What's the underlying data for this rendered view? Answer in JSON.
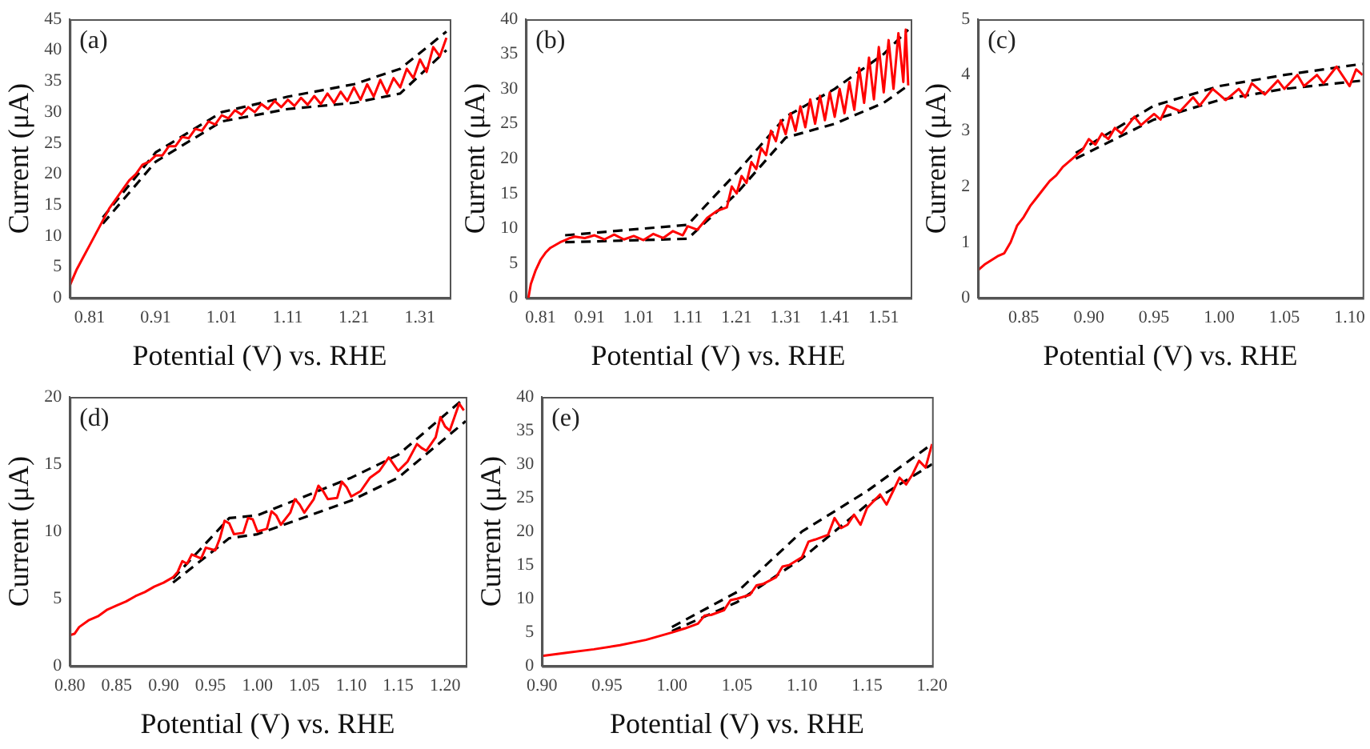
{
  "chart_data": [
    {
      "type": "line",
      "xlabel": "Potential (V) vs. RHE",
      "ylabel": "Current (μA)",
      "annotations": [
        "(a)"
      ],
      "legend": false,
      "grid": false,
      "marker": "none",
      "xlim": [
        0.78,
        1.355
      ],
      "xticks": [
        0.81,
        0.91,
        1.01,
        1.11,
        1.21,
        1.31
      ],
      "ylim": [
        0,
        45
      ],
      "yticks": [
        0,
        5,
        10,
        15,
        20,
        25,
        30,
        35,
        40,
        45
      ],
      "series": [
        {
          "color": "#ff0000",
          "line_style": "solid",
          "x": [
            0.78,
            0.79,
            0.8,
            0.81,
            0.82,
            0.83,
            0.84,
            0.85,
            0.86,
            0.87,
            0.88,
            0.89,
            0.9,
            0.91,
            0.92,
            0.93,
            0.94,
            0.95,
            0.96,
            0.97,
            0.98,
            0.99,
            1.0,
            1.01,
            1.02,
            1.03,
            1.04,
            1.05,
            1.06,
            1.07,
            1.08,
            1.09,
            1.1,
            1.11,
            1.12,
            1.13,
            1.14,
            1.15,
            1.16,
            1.17,
            1.18,
            1.19,
            1.2,
            1.21,
            1.22,
            1.23,
            1.24,
            1.25,
            1.26,
            1.27,
            1.28,
            1.29,
            1.3,
            1.31,
            1.32,
            1.33,
            1.34,
            1.35
          ],
          "values": [
            2,
            4.5,
            6.5,
            8.5,
            10.5,
            12.5,
            14.5,
            16,
            17.5,
            19,
            20,
            21.5,
            22,
            23,
            23,
            24.5,
            24.5,
            26,
            25.8,
            27.3,
            27,
            28.5,
            28,
            29.5,
            29,
            30.3,
            29.6,
            30.8,
            30,
            31.3,
            30.5,
            31.8,
            30.8,
            32,
            31,
            32.3,
            31.2,
            32.6,
            31.3,
            33,
            31.5,
            33.3,
            31.8,
            34,
            32,
            34.5,
            32.5,
            35.2,
            33,
            35.5,
            34,
            37,
            35.5,
            38.5,
            36.5,
            40.5,
            39,
            42
          ]
        },
        {
          "color": "#000000",
          "line_style": "dashed",
          "x": [
            0.83,
            0.91,
            1.01,
            1.11,
            1.21,
            1.28,
            1.35
          ],
          "values": [
            13,
            23.5,
            30,
            32.5,
            34.5,
            37,
            43
          ]
        },
        {
          "color": "#000000",
          "line_style": "dashed",
          "x": [
            0.83,
            0.91,
            1.01,
            1.11,
            1.21,
            1.28,
            1.35
          ],
          "values": [
            12,
            22,
            28.5,
            30.5,
            31.5,
            33,
            40
          ]
        }
      ]
    },
    {
      "type": "line",
      "xlabel": "Potential (V) vs. RHE",
      "ylabel": "Current (μA)",
      "annotations": [
        "(b)"
      ],
      "legend": false,
      "grid": false,
      "marker": "none",
      "xlim": [
        0.78,
        1.565
      ],
      "xticks": [
        0.81,
        0.91,
        1.01,
        1.11,
        1.21,
        1.31,
        1.41,
        1.51
      ],
      "ylim": [
        0,
        40
      ],
      "yticks": [
        0,
        5,
        10,
        15,
        20,
        25,
        30,
        35,
        40
      ],
      "series": [
        {
          "color": "#ff0000",
          "line_style": "solid",
          "x": [
            0.785,
            0.79,
            0.8,
            0.81,
            0.82,
            0.83,
            0.84,
            0.85,
            0.86,
            0.87,
            0.88,
            0.9,
            0.92,
            0.94,
            0.96,
            0.98,
            1.0,
            1.02,
            1.04,
            1.06,
            1.08,
            1.1,
            1.11,
            1.13,
            1.15,
            1.17,
            1.19,
            1.2,
            1.21,
            1.22,
            1.23,
            1.24,
            1.25,
            1.26,
            1.27,
            1.28,
            1.29,
            1.3,
            1.31,
            1.32,
            1.33,
            1.34,
            1.35,
            1.36,
            1.37,
            1.38,
            1.39,
            1.4,
            1.41,
            1.42,
            1.43,
            1.44,
            1.45,
            1.46,
            1.47,
            1.48,
            1.49,
            1.5,
            1.51,
            1.52,
            1.53,
            1.54,
            1.55,
            1.555,
            1.56
          ],
          "values": [
            0,
            2,
            4,
            5.5,
            6.5,
            7.2,
            7.6,
            8,
            8.3,
            8.6,
            8.8,
            8.6,
            9,
            8.4,
            9.1,
            8.4,
            8.9,
            8.3,
            9.2,
            8.6,
            9.6,
            9,
            10.3,
            9.8,
            11.5,
            12.5,
            13,
            16,
            15,
            17.5,
            16.5,
            19.5,
            18.5,
            21.5,
            20.5,
            24,
            22.5,
            25.5,
            23.5,
            26.5,
            24,
            27.5,
            24.5,
            28.5,
            25,
            29,
            25.5,
            29.5,
            26,
            30,
            26.5,
            31,
            27,
            33,
            28,
            34.5,
            28.5,
            36,
            29.5,
            37,
            30,
            38,
            31,
            38.5,
            30.5
          ]
        },
        {
          "color": "#000000",
          "line_style": "dashed",
          "x": [
            0.86,
            1.11,
            1.21,
            1.31,
            1.41,
            1.51,
            1.56
          ],
          "values": [
            9,
            10.5,
            18,
            26,
            30,
            35,
            38.5
          ]
        },
        {
          "color": "#000000",
          "line_style": "dashed",
          "x": [
            0.86,
            1.11,
            1.21,
            1.31,
            1.41,
            1.51,
            1.56
          ],
          "values": [
            8,
            8.5,
            15,
            23,
            25,
            28,
            30.5
          ]
        }
      ]
    },
    {
      "type": "line",
      "xlabel": "Potential (V) vs. RHE",
      "ylabel": "Current (μA)",
      "annotations": [
        "(c)"
      ],
      "legend": false,
      "grid": false,
      "marker": "none",
      "xlim": [
        0.815,
        1.11
      ],
      "xticks": [
        {
          "value": 0.85,
          "label": "0.85"
        },
        {
          "value": 0.9,
          "label": "0.90"
        },
        {
          "value": 0.95,
          "label": "0.95"
        },
        {
          "value": 1.0,
          "label": "1.00"
        },
        {
          "value": 1.05,
          "label": "1.05"
        },
        {
          "value": 1.1,
          "label": "1.10"
        }
      ],
      "ylim": [
        0,
        5
      ],
      "yticks": [
        0,
        1,
        2,
        3,
        4,
        5
      ],
      "series": [
        {
          "color": "#ff0000",
          "line_style": "solid",
          "x": [
            0.815,
            0.82,
            0.83,
            0.835,
            0.84,
            0.845,
            0.85,
            0.855,
            0.86,
            0.865,
            0.87,
            0.875,
            0.88,
            0.885,
            0.89,
            0.895,
            0.9,
            0.905,
            0.91,
            0.915,
            0.92,
            0.925,
            0.935,
            0.94,
            0.95,
            0.955,
            0.96,
            0.97,
            0.98,
            0.985,
            0.995,
            1.005,
            1.015,
            1.02,
            1.025,
            1.035,
            1.045,
            1.05,
            1.06,
            1.065,
            1.075,
            1.08,
            1.09,
            1.1,
            1.105,
            1.11
          ],
          "values": [
            0.5,
            0.6,
            0.75,
            0.8,
            1.0,
            1.3,
            1.45,
            1.65,
            1.8,
            1.95,
            2.1,
            2.2,
            2.35,
            2.45,
            2.55,
            2.65,
            2.85,
            2.75,
            2.95,
            2.85,
            3.05,
            2.95,
            3.25,
            3.1,
            3.3,
            3.2,
            3.45,
            3.35,
            3.6,
            3.45,
            3.75,
            3.55,
            3.75,
            3.6,
            3.85,
            3.65,
            3.9,
            3.75,
            4.0,
            3.8,
            4.0,
            3.85,
            4.15,
            3.8,
            4.1,
            4.0
          ]
        },
        {
          "color": "#000000",
          "line_style": "dashed",
          "x": [
            0.89,
            0.95,
            1.0,
            1.05,
            1.11
          ],
          "values": [
            2.6,
            3.45,
            3.8,
            4.0,
            4.2
          ]
        },
        {
          "color": "#000000",
          "line_style": "dashed",
          "x": [
            0.89,
            0.95,
            1.0,
            1.05,
            1.11
          ],
          "values": [
            2.5,
            3.2,
            3.55,
            3.75,
            3.9
          ]
        }
      ]
    },
    {
      "type": "line",
      "xlabel": "Potential (V) vs. RHE",
      "ylabel": "Current (μA)",
      "annotations": [
        "(d)"
      ],
      "legend": false,
      "grid": false,
      "marker": "none",
      "xlim": [
        0.8,
        1.222
      ],
      "xticks": [
        {
          "value": 0.8,
          "label": "0.80"
        },
        {
          "value": 0.85,
          "label": "0.85"
        },
        {
          "value": 0.9,
          "label": "0.90"
        },
        {
          "value": 0.95,
          "label": "0.95"
        },
        {
          "value": 1.0,
          "label": "1.00"
        },
        {
          "value": 1.05,
          "label": "1.05"
        },
        {
          "value": 1.1,
          "label": "1.10"
        },
        {
          "value": 1.15,
          "label": "1.15"
        },
        {
          "value": 1.2,
          "label": "1.20"
        }
      ],
      "ylim": [
        0,
        20
      ],
      "yticks": [
        0,
        5,
        10,
        15,
        20
      ],
      "series": [
        {
          "color": "#ff0000",
          "line_style": "solid",
          "x": [
            0.8,
            0.805,
            0.81,
            0.82,
            0.83,
            0.84,
            0.85,
            0.86,
            0.87,
            0.88,
            0.89,
            0.9,
            0.91,
            0.915,
            0.92,
            0.925,
            0.93,
            0.94,
            0.945,
            0.955,
            0.96,
            0.965,
            0.97,
            0.975,
            0.985,
            0.99,
            0.995,
            1.0,
            1.01,
            1.015,
            1.02,
            1.025,
            1.035,
            1.04,
            1.045,
            1.05,
            1.06,
            1.065,
            1.07,
            1.075,
            1.085,
            1.09,
            1.095,
            1.1,
            1.11,
            1.12,
            1.13,
            1.14,
            1.145,
            1.15,
            1.16,
            1.17,
            1.175,
            1.18,
            1.19,
            1.195,
            1.2,
            1.205,
            1.21,
            1.215,
            1.22
          ],
          "values": [
            2.3,
            2.4,
            2.9,
            3.4,
            3.7,
            4.2,
            4.5,
            4.8,
            5.2,
            5.5,
            5.9,
            6.2,
            6.6,
            7.0,
            7.8,
            7.6,
            8.3,
            8.0,
            8.8,
            8.6,
            9.5,
            10.8,
            10.6,
            9.8,
            9.9,
            11.0,
            10.9,
            10.0,
            10.2,
            11.5,
            11.2,
            10.5,
            11.4,
            12.4,
            12.0,
            11.4,
            12.4,
            13.4,
            13.0,
            12.4,
            12.5,
            13.7,
            13.3,
            12.6,
            13.0,
            14.0,
            14.5,
            15.5,
            15.0,
            14.5,
            15.2,
            16.5,
            16.2,
            16.0,
            17.0,
            18.5,
            17.8,
            17.5,
            18.5,
            19.5,
            19.0
          ]
        },
        {
          "color": "#000000",
          "line_style": "dashed",
          "x": [
            0.91,
            0.97,
            1.0,
            1.1,
            1.15,
            1.222
          ],
          "values": [
            6.5,
            11,
            11.2,
            14,
            15.7,
            20
          ]
        },
        {
          "color": "#000000",
          "line_style": "dashed",
          "x": [
            0.91,
            0.97,
            1.0,
            1.1,
            1.15,
            1.222
          ],
          "values": [
            6.2,
            9.5,
            9.8,
            12.3,
            14,
            18.2
          ]
        }
      ]
    },
    {
      "type": "line",
      "xlabel": "Potential (V) vs. RHE",
      "ylabel": "Current (μA)",
      "annotations": [
        "(e)"
      ],
      "legend": false,
      "grid": false,
      "marker": "none",
      "xlim": [
        0.9,
        1.2
      ],
      "xticks": [
        {
          "value": 0.9,
          "label": "0.90"
        },
        {
          "value": 0.95,
          "label": "0.95"
        },
        {
          "value": 1.0,
          "label": "1.00"
        },
        {
          "value": 1.05,
          "label": "1.05"
        },
        {
          "value": 1.1,
          "label": "1.10"
        },
        {
          "value": 1.15,
          "label": "1.15"
        },
        {
          "value": 1.2,
          "label": "1.20"
        }
      ],
      "ylim": [
        0,
        40
      ],
      "yticks": [
        0,
        5,
        10,
        15,
        20,
        25,
        30,
        35,
        40
      ],
      "series": [
        {
          "color": "#ff0000",
          "line_style": "solid",
          "x": [
            0.9,
            0.92,
            0.94,
            0.96,
            0.98,
            1.0,
            1.01,
            1.02,
            1.025,
            1.03,
            1.04,
            1.045,
            1.05,
            1.06,
            1.065,
            1.07,
            1.08,
            1.085,
            1.09,
            1.1,
            1.105,
            1.11,
            1.12,
            1.125,
            1.13,
            1.135,
            1.14,
            1.145,
            1.15,
            1.16,
            1.165,
            1.17,
            1.175,
            1.18,
            1.185,
            1.19,
            1.195,
            1.2
          ],
          "values": [
            1.5,
            2.0,
            2.5,
            3.1,
            3.9,
            5.0,
            5.6,
            6.3,
            7.5,
            7.6,
            8.3,
            9.8,
            10,
            10.6,
            12,
            12.2,
            13.2,
            14.8,
            15,
            16.2,
            18.5,
            18.8,
            19.5,
            22,
            20.5,
            21,
            22.5,
            21,
            23.5,
            25.5,
            24,
            26,
            28,
            27,
            28.5,
            30.5,
            29.5,
            33
          ]
        },
        {
          "color": "#000000",
          "line_style": "dashed",
          "x": [
            1.0,
            1.05,
            1.1,
            1.15,
            1.2
          ],
          "values": [
            5.8,
            11,
            20,
            26,
            33
          ]
        },
        {
          "color": "#000000",
          "line_style": "dashed",
          "x": [
            1.0,
            1.05,
            1.1,
            1.15,
            1.2
          ],
          "values": [
            5.2,
            9.5,
            16,
            24,
            30
          ]
        }
      ]
    }
  ]
}
